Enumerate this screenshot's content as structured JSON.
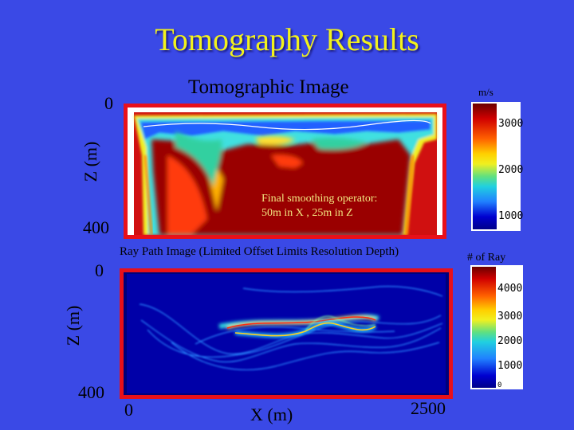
{
  "slide": {
    "title": "Tomography Results"
  },
  "top_panel": {
    "title": "Tomographic Image",
    "unit": "m/s",
    "z_label": "Z (m)",
    "z_top": "0",
    "z_bottom": "400",
    "note_line1": "Final smoothing operator:",
    "note_line2": "50m in X , 25m in Z",
    "colorbar_ticks": [
      "3000",
      "2000",
      "1000"
    ]
  },
  "bottom_panel": {
    "title": "Ray Path Image (Limited Offset Limits Resolution Depth)",
    "unit": "# of Ray",
    "z_label": "Z (m)",
    "z_top": "0",
    "z_bottom": "400",
    "x_label": "X (m)",
    "x_left": "0",
    "x_right": "2500",
    "colorbar_ticks": [
      "4000",
      "3000",
      "2000",
      "1000",
      "0"
    ]
  },
  "colors": {
    "background": "#3a49e6",
    "title": "#f2f21c",
    "frame": "#e8101a"
  }
}
